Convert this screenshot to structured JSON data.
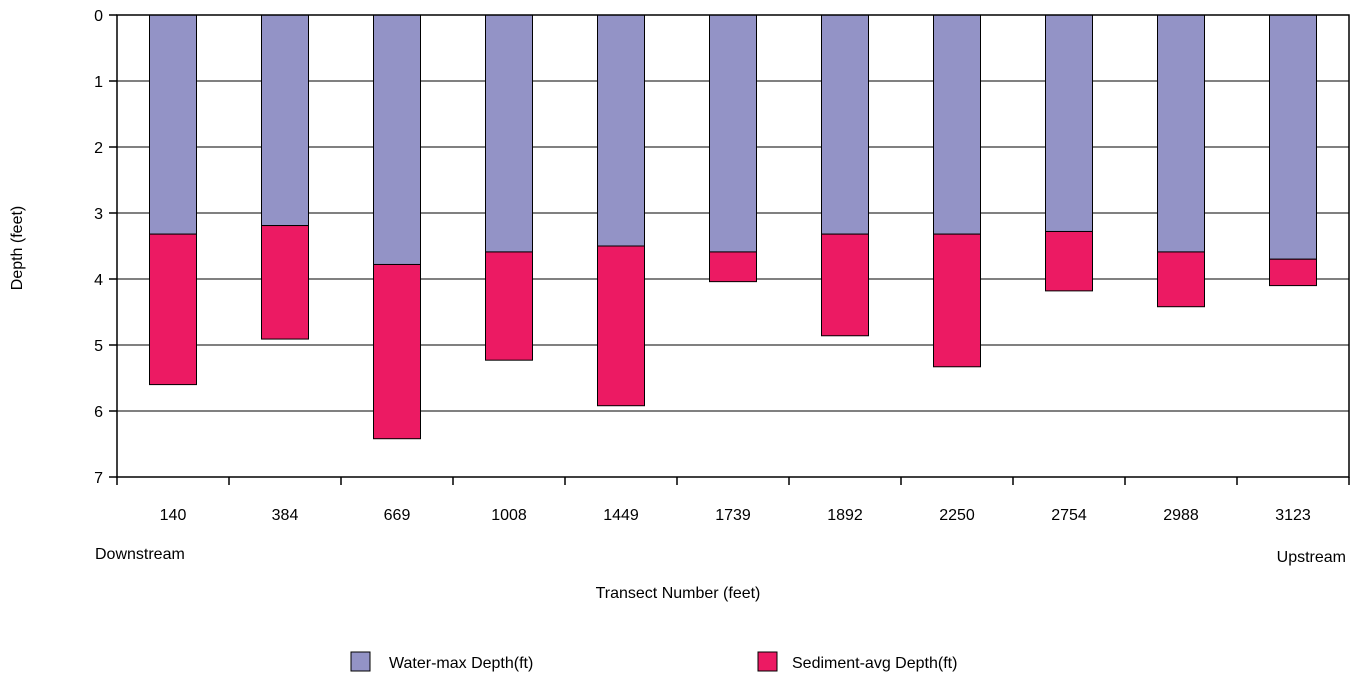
{
  "chart_data": {
    "type": "bar",
    "stacked": true,
    "inverted_y_axis": true,
    "title": "",
    "xlabel": "Transect Number (feet)",
    "ylabel": "Depth (feet)",
    "ylim": [
      0,
      7
    ],
    "yticks": [
      0,
      1,
      2,
      3,
      4,
      5,
      6,
      7
    ],
    "grid": true,
    "legend_position": "bottom",
    "x_annotations": {
      "left": "Downstream",
      "right": "Upstream"
    },
    "categories": [
      "140",
      "384",
      "669",
      "1008",
      "1449",
      "1739",
      "1892",
      "2250",
      "2754",
      "2988",
      "3123"
    ],
    "series": [
      {
        "name": "Water-max Depth(ft)",
        "color": "#9393c6",
        "values": [
          3.32,
          3.19,
          3.78,
          3.59,
          3.5,
          3.59,
          3.32,
          3.32,
          3.28,
          3.59,
          3.7
        ]
      },
      {
        "name": "Sediment-avg Depth(ft)",
        "color": "#ec1a63",
        "values": [
          2.28,
          1.72,
          2.64,
          1.64,
          2.42,
          0.45,
          1.54,
          2.01,
          0.9,
          0.83,
          0.4
        ]
      }
    ]
  }
}
